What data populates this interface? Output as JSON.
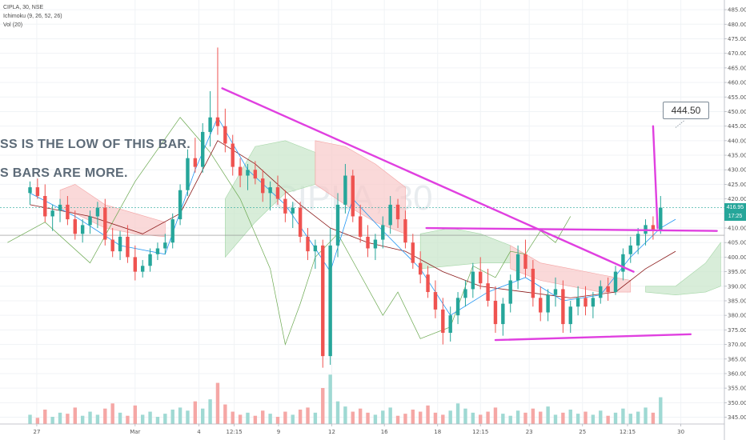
{
  "legend": {
    "symbol": "CIPLA, 30, NSE",
    "ichimoku": "Ichimoku (9, 26, 52, 26)",
    "volume": "Vol (20)"
  },
  "watermark": "CIPLA, 30",
  "overlay_texts": [
    "SS IS THE LOW OF THIS BAR.",
    "S BARS ARE MORE."
  ],
  "callout": "444.50",
  "price_tags": {
    "last": "416.95",
    "countdown": "17:25"
  },
  "colors": {
    "up": "#26a69a",
    "down": "#ef5350",
    "vol_up": "#9fd9d3",
    "vol_down": "#f5a7a5",
    "magenta": "#e040e0",
    "conversion": "#2196f3",
    "base": "#8b1a1a",
    "lagging": "#6aa84f",
    "cloud_bull": "#c8e6c9",
    "cloud_bear": "#f8c9c9"
  },
  "chart_data": {
    "type": "candlestick",
    "y_axis": {
      "ticks": [
        485,
        480,
        475,
        470,
        465,
        460,
        455,
        450,
        445,
        440,
        435,
        430,
        425,
        420,
        415,
        410,
        405,
        400,
        395,
        390,
        385,
        380,
        375,
        370,
        365,
        360,
        355,
        350,
        345
      ],
      "tick_labels": [
        "485.00",
        "480.00",
        "475.00",
        "470.00",
        "465.00",
        "460.00",
        "455.00",
        "450.00",
        "445.00",
        "440.00",
        "435.00",
        "430.00",
        "425.00",
        "420.00",
        "415.00",
        "410.00",
        "405.00",
        "400.00",
        "395.00",
        "390.00",
        "385.00",
        "380.00",
        "375.00",
        "370.00",
        "365.00",
        "360.00",
        "355.00",
        "350.00",
        "345.00"
      ],
      "range": [
        343.5,
        487.5
      ]
    },
    "x_axis": {
      "tick_labels": [
        "27",
        "Mar",
        "4",
        "12:15",
        "9",
        "12",
        "16",
        "18",
        "12:15",
        "23",
        "25",
        "12:15",
        "30"
      ],
      "tick_positions": [
        0.9,
        14.0,
        22.5,
        27.2,
        33.1,
        40.2,
        47.2,
        54.3,
        60.0,
        66.5,
        73.6,
        79.6,
        86.7
      ]
    },
    "x_range": [
      -4.0,
      92.5
    ],
    "last_price": 416.95,
    "candles": [
      [
        422,
        426,
        418,
        424
      ],
      [
        424,
        427,
        420,
        421
      ],
      [
        421,
        425,
        412,
        414
      ],
      [
        414,
        418,
        409,
        416
      ],
      [
        416,
        420,
        412,
        418
      ],
      [
        418,
        421,
        411,
        413
      ],
      [
        413,
        416,
        406,
        408
      ],
      [
        408,
        413,
        405,
        411
      ],
      [
        411,
        416,
        408,
        414
      ],
      [
        414,
        419,
        410,
        417
      ],
      [
        417,
        420,
        404,
        406
      ],
      [
        406,
        410,
        400,
        402
      ],
      [
        402,
        409,
        399,
        407
      ],
      [
        407,
        411,
        398,
        400
      ],
      [
        400,
        404,
        392,
        395
      ],
      [
        395,
        399,
        393,
        397
      ],
      [
        397,
        403,
        395,
        401
      ],
      [
        401,
        405,
        399,
        403
      ],
      [
        403,
        408,
        401,
        405
      ],
      [
        405,
        415,
        403,
        413
      ],
      [
        413,
        425,
        411,
        423
      ],
      [
        423,
        437,
        421,
        434
      ],
      [
        434,
        441,
        429,
        431
      ],
      [
        431,
        446,
        429,
        443
      ],
      [
        443,
        457,
        438,
        448
      ],
      [
        448,
        472,
        442,
        445
      ],
      [
        445,
        451,
        436,
        439
      ],
      [
        439,
        442,
        428,
        431
      ],
      [
        431,
        434,
        424,
        428
      ],
      [
        428,
        432,
        423,
        430
      ],
      [
        430,
        433,
        425,
        427
      ],
      [
        427,
        430,
        419,
        422
      ],
      [
        422,
        426,
        416,
        424
      ],
      [
        424,
        428,
        418,
        420
      ],
      [
        420,
        423,
        412,
        415
      ],
      [
        415,
        419,
        410,
        417
      ],
      [
        417,
        419,
        405,
        407
      ],
      [
        407,
        410,
        399,
        402
      ],
      [
        402,
        406,
        396,
        404
      ],
      [
        404,
        406,
        362,
        366
      ],
      [
        366,
        410,
        363,
        404
      ],
      [
        404,
        422,
        400,
        418
      ],
      [
        418,
        432,
        415,
        428
      ],
      [
        428,
        430,
        412,
        414
      ],
      [
        414,
        418,
        405,
        407
      ],
      [
        407,
        411,
        400,
        403
      ],
      [
        403,
        408,
        399,
        406
      ],
      [
        406,
        414,
        403,
        411
      ],
      [
        411,
        421,
        408,
        418
      ],
      [
        418,
        420,
        410,
        413
      ],
      [
        413,
        416,
        403,
        405
      ],
      [
        405,
        408,
        396,
        398
      ],
      [
        398,
        402,
        391,
        394
      ],
      [
        394,
        397,
        386,
        388
      ],
      [
        388,
        392,
        379,
        382
      ],
      [
        382,
        386,
        370,
        374
      ],
      [
        374,
        383,
        371,
        380
      ],
      [
        380,
        388,
        377,
        386
      ],
      [
        386,
        392,
        383,
        389
      ],
      [
        389,
        398,
        386,
        395
      ],
      [
        395,
        400,
        389,
        391
      ],
      [
        391,
        396,
        383,
        385
      ],
      [
        385,
        390,
        374,
        377
      ],
      [
        377,
        386,
        373,
        384
      ],
      [
        384,
        394,
        381,
        392
      ],
      [
        392,
        404,
        389,
        401
      ],
      [
        401,
        406,
        393,
        396
      ],
      [
        396,
        399,
        383,
        386
      ],
      [
        386,
        390,
        378,
        381
      ],
      [
        381,
        389,
        378,
        387
      ],
      [
        387,
        393,
        383,
        389
      ],
      [
        389,
        392,
        374,
        377
      ],
      [
        377,
        385,
        374,
        383
      ],
      [
        383,
        390,
        380,
        386
      ],
      [
        386,
        390,
        380,
        383
      ],
      [
        383,
        388,
        379,
        386
      ],
      [
        386,
        392,
        384,
        390
      ],
      [
        390,
        393,
        385,
        388
      ],
      [
        388,
        397,
        387,
        395
      ],
      [
        395,
        403,
        392,
        401
      ],
      [
        401,
        407,
        398,
        404
      ],
      [
        404,
        410,
        401,
        408
      ],
      [
        408,
        413,
        404,
        411
      ],
      [
        411,
        414,
        406,
        409
      ],
      [
        409,
        421,
        408,
        417
      ]
    ],
    "volume": {
      "scale": [
        0,
        70
      ],
      "values": [
        9,
        6,
        14,
        7,
        11,
        10,
        16,
        8,
        12,
        9,
        15,
        20,
        11,
        8,
        18,
        9,
        12,
        7,
        10,
        14,
        16,
        13,
        22,
        15,
        24,
        40,
        19,
        12,
        9,
        11,
        8,
        13,
        10,
        7,
        12,
        9,
        14,
        16,
        11,
        35,
        48,
        22,
        17,
        12,
        15,
        11,
        9,
        13,
        16,
        8,
        10,
        14,
        12,
        18,
        11,
        9,
        13,
        20,
        15,
        11,
        9,
        12,
        16,
        10,
        8,
        13,
        11,
        15,
        12,
        17,
        9,
        11,
        14,
        10,
        12,
        9,
        13,
        8,
        11,
        15,
        10,
        12,
        16,
        11,
        26
      ]
    },
    "ichimoku": {
      "conversion": [
        [
          0,
          422
        ],
        [
          6,
          414
        ],
        [
          12,
          404
        ],
        [
          18,
          401
        ],
        [
          22,
          430
        ],
        [
          25,
          448
        ],
        [
          29,
          430
        ],
        [
          34,
          418
        ],
        [
          38,
          403
        ],
        [
          40,
          395
        ],
        [
          43,
          420
        ],
        [
          47,
          409
        ],
        [
          52,
          396
        ],
        [
          56,
          380
        ],
        [
          61,
          388
        ],
        [
          66,
          393
        ],
        [
          71,
          385
        ],
        [
          76,
          387
        ],
        [
          80,
          400
        ],
        [
          84,
          410
        ],
        [
          86,
          413
        ]
      ],
      "base": [
        [
          0,
          418
        ],
        [
          8,
          414
        ],
        [
          15,
          408
        ],
        [
          20,
          415
        ],
        [
          25,
          440
        ],
        [
          30,
          432
        ],
        [
          36,
          418
        ],
        [
          40,
          410
        ],
        [
          45,
          405
        ],
        [
          50,
          402
        ],
        [
          55,
          395
        ],
        [
          60,
          390
        ],
        [
          66,
          388
        ],
        [
          72,
          386
        ],
        [
          78,
          388
        ],
        [
          82,
          396
        ],
        [
          86,
          402
        ]
      ],
      "lagging": [
        [
          -3,
          405
        ],
        [
          2,
          412
        ],
        [
          8,
          398
        ],
        [
          14,
          426
        ],
        [
          20,
          448
        ],
        [
          24,
          436
        ],
        [
          28,
          420
        ],
        [
          32,
          396
        ],
        [
          34,
          370
        ],
        [
          36,
          384
        ],
        [
          38,
          400
        ],
        [
          41,
          408
        ],
        [
          44,
          394
        ],
        [
          47,
          380
        ],
        [
          49,
          388
        ],
        [
          52,
          372
        ],
        [
          56,
          376
        ],
        [
          59,
          397
        ],
        [
          62,
          393
        ],
        [
          64,
          402
        ],
        [
          66,
          401
        ],
        [
          68,
          409
        ],
        [
          70,
          405
        ],
        [
          72,
          414
        ]
      ],
      "cloud": [
        {
          "kind": "bear",
          "x": [
            4,
            6,
            10,
            14,
            18
          ],
          "top": [
            423,
            425,
            418,
            415,
            412
          ],
          "bottom": [
            417,
            415,
            410,
            408,
            407
          ]
        },
        {
          "kind": "bull",
          "x": [
            26,
            30,
            34,
            38
          ],
          "top": [
            420,
            438,
            440,
            436
          ],
          "bottom": [
            400,
            412,
            422,
            425
          ]
        },
        {
          "kind": "bear",
          "x": [
            38,
            42,
            46,
            50
          ],
          "top": [
            440,
            438,
            432,
            424
          ],
          "bottom": [
            425,
            418,
            412,
            408
          ]
        },
        {
          "kind": "bull",
          "x": [
            52,
            56,
            60,
            64
          ],
          "top": [
            408,
            410,
            408,
            404
          ],
          "bottom": [
            396,
            397,
            398,
            398
          ]
        },
        {
          "kind": "bear",
          "x": [
            64,
            68,
            72,
            76,
            80
          ],
          "top": [
            404,
            398,
            396,
            394,
            392
          ],
          "bottom": [
            396,
            392,
            390,
            388,
            388
          ]
        },
        {
          "kind": "bull",
          "x": [
            82,
            86,
            90,
            92
          ],
          "top": [
            390,
            390,
            398,
            405
          ],
          "bottom": [
            388,
            387,
            388,
            390
          ]
        }
      ]
    },
    "drawings": {
      "trendline_down": [
        [
          25.6,
          458
        ],
        [
          80.4,
          395
        ]
      ],
      "resistance": [
        [
          52.8,
          410
        ],
        [
          91.5,
          409
        ]
      ],
      "support": [
        [
          62.0,
          371.5
        ],
        [
          88.0,
          373.5
        ]
      ],
      "target_vertical": [
        [
          83.0,
          445
        ],
        [
          83.6,
          410
        ]
      ],
      "callout_pointer": [
        [
          86.0,
          444.5
        ],
        [
          87.2,
          447
        ]
      ]
    }
  }
}
